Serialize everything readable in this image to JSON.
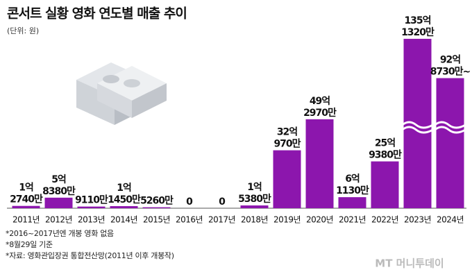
{
  "chart_data": {
    "type": "bar",
    "title": "콘서트 실황 영화 연도별 매출 추이",
    "subtitle": "(단위: 원)",
    "categories": [
      "2011년",
      "2012년",
      "2013년",
      "2014년",
      "2015년",
      "2016년",
      "2017년",
      "2018년",
      "2019년",
      "2020년",
      "2021년",
      "2022년",
      "2023년",
      "2024년"
    ],
    "values": [
      127400000,
      583800000,
      91100000,
      114500000,
      52600000,
      0,
      0,
      153800000,
      3209700000,
      4929700000,
      611300000,
      2593800000,
      13513200000,
      9287300000
    ],
    "value_labels": [
      [
        "1억",
        "2740만"
      ],
      [
        "5억",
        "8380만"
      ],
      [
        "9110만"
      ],
      [
        "1억",
        "1450만"
      ],
      [
        "5260만"
      ],
      [
        "0"
      ],
      [
        "0"
      ],
      [
        "1억",
        "5380만"
      ],
      [
        "32억",
        "970만"
      ],
      [
        "49억",
        "2970만"
      ],
      [
        "6억",
        "1130만"
      ],
      [
        "25억",
        "9380만"
      ],
      [
        "135억",
        "1320만"
      ],
      [
        "92억",
        "8730만~"
      ]
    ],
    "color": "#8c16ad",
    "notes": [
      "*2016~2017년엔 개봉 영화 없음",
      "*8월29일 기준",
      "*자료: 영화관입장권 통합전산망(2011년 이후 개봉작)"
    ],
    "logo": "MT 머니투데이"
  }
}
